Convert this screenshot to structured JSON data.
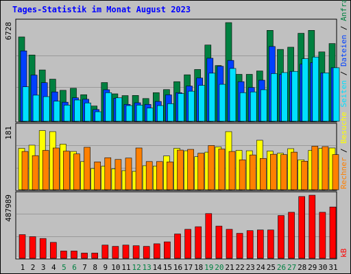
{
  "title": "Tages-Statistik im Monat August 2023",
  "colors": {
    "background": "#c0c0c0",
    "panel": "#c0c0c0",
    "hits": "#008040",
    "files": "#0040ff",
    "pages": "#00e0ff",
    "visits": "#ffff00",
    "sites": "#ff8000",
    "kbytes": "#ff0000",
    "weekday_label": "#000000",
    "weekend_label": "#008040",
    "title": "#0000ff"
  },
  "chart_data": [
    {
      "type": "bar",
      "panel": "hits-files-pages",
      "ymax_label": "6728",
      "ylim": [
        0,
        6728
      ],
      "categories": [
        "1",
        "2",
        "3",
        "4",
        "5",
        "6",
        "7",
        "8",
        "9",
        "10",
        "11",
        "12",
        "13",
        "14",
        "15",
        "16",
        "17",
        "18",
        "19",
        "20",
        "21",
        "22",
        "23",
        "24",
        "25",
        "26",
        "27",
        "28",
        "29",
        "30",
        "31"
      ],
      "weekend_days": [
        "5",
        "6",
        "12",
        "13",
        "19",
        "20",
        "26",
        "27"
      ],
      "legend": [
        "Anfragen",
        "Dateien",
        "Seiten"
      ],
      "series": [
        {
          "name": "Anfragen",
          "color": "#008040",
          "values": [
            5750,
            4520,
            3500,
            2870,
            2110,
            2250,
            1810,
            1040,
            2640,
            1870,
            1750,
            1760,
            1550,
            1950,
            2160,
            2700,
            3170,
            3530,
            5200,
            3800,
            6728,
            3200,
            3200,
            3430,
            6200,
            4900,
            5050,
            6000,
            6200,
            4730,
            5300
          ]
        },
        {
          "name": "Dateien",
          "color": "#0040ff",
          "values": [
            4800,
            3150,
            2630,
            2000,
            1300,
            1600,
            1500,
            800,
            2150,
            1570,
            1150,
            1260,
            1150,
            1350,
            1800,
            1950,
            2400,
            2950,
            4300,
            3750,
            4150,
            2700,
            2300,
            2800,
            5100,
            3200,
            3400,
            3900,
            4000,
            3300,
            3650
          ]
        },
        {
          "name": "Seiten",
          "color": "#00e0ff",
          "values": [
            2350,
            1780,
            1680,
            1370,
            1100,
            1450,
            1250,
            650,
            1950,
            1600,
            1070,
            1100,
            900,
            1070,
            1200,
            1890,
            2050,
            2450,
            3280,
            2520,
            3600,
            1950,
            2000,
            2150,
            3250,
            3320,
            3400,
            4270,
            4380,
            3300,
            3650
          ]
        }
      ]
    },
    {
      "type": "bar",
      "panel": "visits-sites",
      "ymax_label": "181",
      "ylim": [
        0,
        181
      ],
      "categories": [
        "1",
        "2",
        "3",
        "4",
        "5",
        "6",
        "7",
        "8",
        "9",
        "10",
        "11",
        "12",
        "13",
        "14",
        "15",
        "16",
        "17",
        "18",
        "19",
        "20",
        "21",
        "22",
        "23",
        "24",
        "25",
        "26",
        "27",
        "28",
        "29",
        "30",
        "31"
      ],
      "legend": [
        "Besuche",
        "Rechner"
      ],
      "series": [
        {
          "name": "Besuche",
          "color": "#ffff00",
          "values": [
            119,
            128,
            170,
            167,
            131,
            110,
            81,
            61,
            68,
            60,
            55,
            53,
            69,
            68,
            97,
            119,
            112,
            95,
            108,
            123,
            167,
            113,
            112,
            142,
            111,
            105,
            118,
            86,
            113,
            119,
            120
          ]
        },
        {
          "name": "Rechner",
          "color": "#ff8000",
          "values": [
            110,
            98,
            113,
            120,
            111,
            103,
            122,
            80,
            92,
            87,
            91,
            120,
            81,
            81,
            80,
            114,
            116,
            105,
            127,
            117,
            110,
            86,
            100,
            90,
            102,
            101,
            108,
            82,
            125,
            124,
            101
          ]
        }
      ]
    },
    {
      "type": "bar",
      "panel": "kbytes",
      "ymax_label": "487989",
      "ylim": [
        0,
        487989
      ],
      "categories": [
        "1",
        "2",
        "3",
        "4",
        "5",
        "6",
        "7",
        "8",
        "9",
        "10",
        "11",
        "12",
        "13",
        "14",
        "15",
        "16",
        "17",
        "18",
        "19",
        "20",
        "21",
        "22",
        "23",
        "24",
        "25",
        "26",
        "27",
        "28",
        "29",
        "30",
        "31"
      ],
      "legend": [
        "kB"
      ],
      "series": [
        {
          "name": "kB",
          "color": "#ff0000",
          "values": [
            183000,
            167000,
            153000,
            123000,
            56000,
            56000,
            40000,
            40000,
            102000,
            92000,
            102000,
            97000,
            92000,
            112000,
            127000,
            188000,
            224000,
            244000,
            346000,
            249000,
            224000,
            193000,
            214000,
            219000,
            219000,
            331000,
            356000,
            478000,
            487989,
            356000,
            397000
          ]
        }
      ]
    }
  ]
}
